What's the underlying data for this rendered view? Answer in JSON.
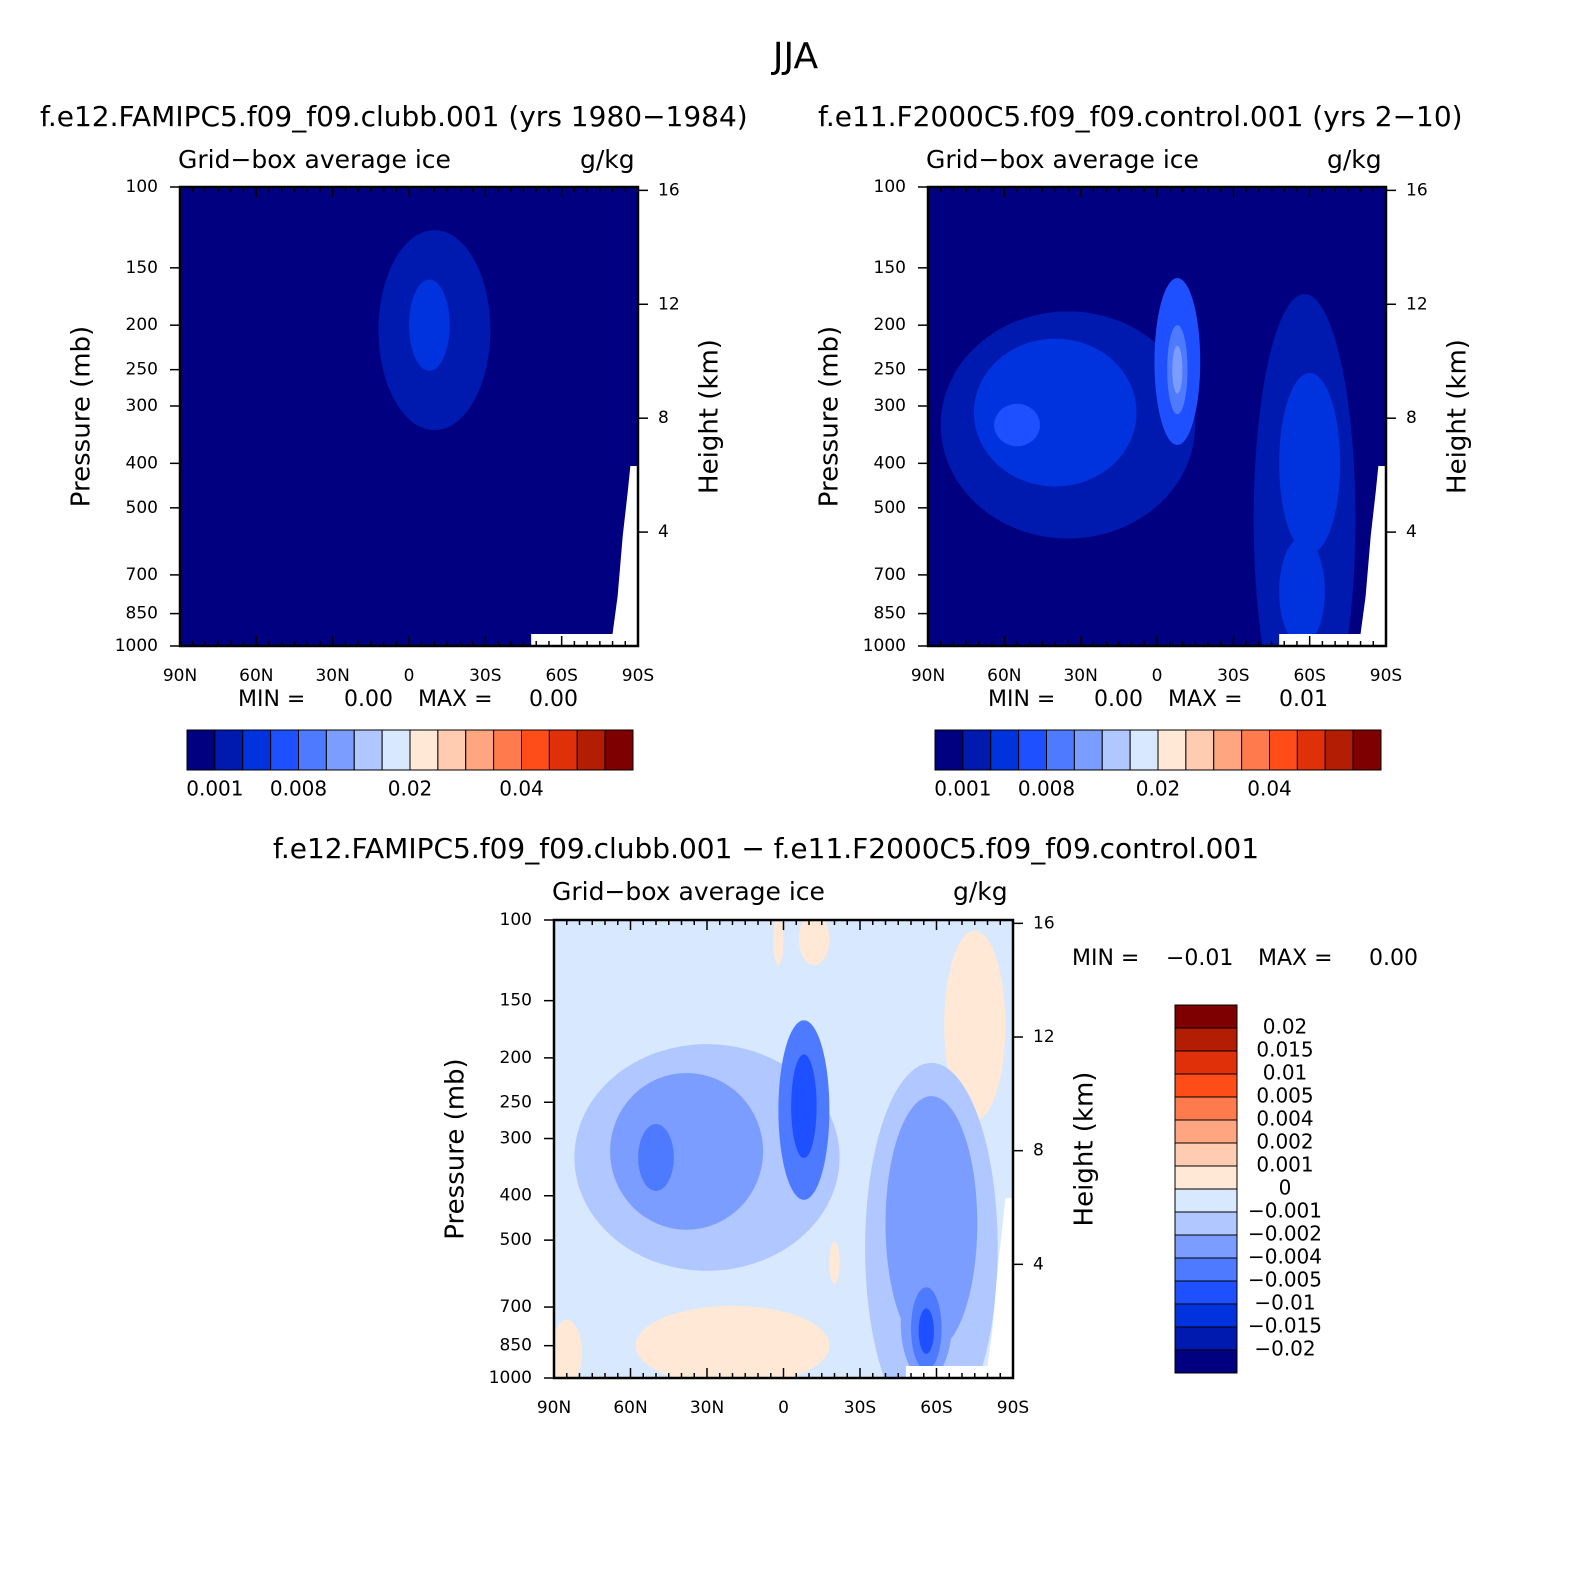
{
  "figure": {
    "title": "JJA"
  },
  "colors": {
    "cmap": [
      "#000080",
      "#0019ae",
      "#0033dd",
      "#1f50ff",
      "#4d7aff",
      "#7b9dff",
      "#b0c7ff",
      "#d7e8ff",
      "#ffe9d6",
      "#ffcbb1",
      "#ffa580",
      "#ff7a4c",
      "#ff4d1a",
      "#e0300a",
      "#b21d04",
      "#7f0000"
    ],
    "missing": "#ffffff"
  },
  "chart_data": [
    {
      "type": "heatmap",
      "title": "f.e12.FAMIPC5.f09_f09.clubb.001 (yrs 1980−1984)",
      "subtitle_left": "Grid−box average ice",
      "subtitle_right": "g/kg",
      "xlabel": "",
      "ylabel": "Pressure (mb)",
      "y2label": "Height (km)",
      "x_ticks": [
        "90N",
        "60N",
        "30N",
        "0",
        "30S",
        "60S",
        "90S"
      ],
      "x_tick_values": [
        90,
        60,
        30,
        0,
        -30,
        -60,
        -90
      ],
      "y_ticks": [
        100,
        150,
        200,
        250,
        300,
        400,
        500,
        700,
        850,
        1000
      ],
      "y2_ticks": [
        16,
        12,
        8,
        4
      ],
      "xlim": [
        90,
        -90
      ],
      "ylim": [
        1000,
        100
      ],
      "min_label": "MIN =",
      "min_value": "0.00",
      "max_label": "MAX =",
      "max_value": "0.00",
      "colorbar": {
        "orientation": "horizontal",
        "labels": [
          "0.001",
          "0.008",
          "0.02",
          "0.04"
        ],
        "label_boxes": [
          1,
          4,
          8,
          12
        ]
      },
      "background_level": 0,
      "features": [
        {
          "level": 1,
          "lat": -10,
          "p": 205,
          "dlat": 22,
          "dp": 95
        },
        {
          "level": 2,
          "lat": -8,
          "p": 200,
          "dlat": 8,
          "dp": 45
        }
      ]
    },
    {
      "type": "heatmap",
      "title": "f.e11.F2000C5.f09_f09.control.001 (yrs 2−10)",
      "subtitle_left": "Grid−box average ice",
      "subtitle_right": "g/kg",
      "xlabel": "",
      "ylabel": "Pressure (mb)",
      "y2label": "Height (km)",
      "x_ticks": [
        "90N",
        "60N",
        "30N",
        "0",
        "30S",
        "60S",
        "90S"
      ],
      "x_tick_values": [
        90,
        60,
        30,
        0,
        -30,
        -60,
        -90
      ],
      "y_ticks": [
        100,
        150,
        200,
        250,
        300,
        400,
        500,
        700,
        850,
        1000
      ],
      "y2_ticks": [
        16,
        12,
        8,
        4
      ],
      "xlim": [
        90,
        -90
      ],
      "ylim": [
        1000,
        100
      ],
      "min_label": "MIN =",
      "min_value": "0.00",
      "max_label": "MAX =",
      "max_value": "0.01",
      "colorbar": {
        "orientation": "horizontal",
        "labels": [
          "0.001",
          "0.008",
          "0.02",
          "0.04"
        ],
        "label_boxes": [
          1,
          4,
          8,
          12
        ]
      },
      "background_level": 0,
      "features": [
        {
          "level": 1,
          "lat": 35,
          "p": 330,
          "dlat": 50,
          "dp": 170
        },
        {
          "level": 1,
          "lat": -58,
          "p": 530,
          "dlat": 20,
          "dp": 430
        },
        {
          "level": 2,
          "lat": 40,
          "p": 310,
          "dlat": 32,
          "dp": 110
        },
        {
          "level": 2,
          "lat": -60,
          "p": 400,
          "dlat": 12,
          "dp": 170
        },
        {
          "level": 2,
          "lat": -57,
          "p": 760,
          "dlat": 9,
          "dp": 200
        },
        {
          "level": 3,
          "lat": -8,
          "p": 240,
          "dlat": 9,
          "dp": 95
        },
        {
          "level": 3,
          "lat": 55,
          "p": 330,
          "dlat": 9,
          "dp": 35
        },
        {
          "level": 4,
          "lat": -8,
          "p": 250,
          "dlat": 4,
          "dp": 55
        },
        {
          "level": 5,
          "lat": -8,
          "p": 250,
          "dlat": 2,
          "dp": 30
        }
      ]
    },
    {
      "type": "heatmap",
      "title": "f.e12.FAMIPC5.f09_f09.clubb.001 − f.e11.F2000C5.f09_f09.control.001",
      "subtitle_left": "Grid−box average ice",
      "subtitle_right": "g/kg",
      "xlabel": "",
      "ylabel": "Pressure (mb)",
      "y2label": "Height (km)",
      "x_ticks": [
        "90N",
        "60N",
        "30N",
        "0",
        "30S",
        "60S",
        "90S"
      ],
      "x_tick_values": [
        90,
        60,
        30,
        0,
        -30,
        -60,
        -90
      ],
      "y_ticks": [
        100,
        150,
        200,
        250,
        300,
        400,
        500,
        700,
        850,
        1000
      ],
      "y2_ticks": [
        16,
        12,
        8,
        4
      ],
      "xlim": [
        90,
        -90
      ],
      "ylim": [
        1000,
        100
      ],
      "min_label": "MIN =",
      "min_value": "−0.01",
      "max_label": "MAX =",
      "max_value": "0.00",
      "colorbar": {
        "orientation": "vertical",
        "labels": [
          "0.02",
          "0.015",
          "0.01",
          "0.005",
          "0.004",
          "0.002",
          "0.001",
          "0",
          "−0.001",
          "−0.002",
          "−0.004",
          "−0.005",
          "−0.01",
          "−0.015",
          "−0.02"
        ],
        "colors": [
          "#7f0000",
          "#b21d04",
          "#e0300a",
          "#ff4d1a",
          "#ff7a4c",
          "#ffa580",
          "#ffcbb1",
          "#ffe9d6",
          "#d7e8ff",
          "#b0c7ff",
          "#7b9dff",
          "#4d7aff",
          "#1f50ff",
          "#0033dd",
          "#0019ae",
          "#000080"
        ]
      },
      "background_level": 7,
      "features": [
        {
          "level": 8,
          "lat": 20,
          "p": 850,
          "dlat": 38,
          "dp": 180
        },
        {
          "level": 8,
          "lat": 85,
          "p": 880,
          "dlat": 6,
          "dp": 160
        },
        {
          "level": 8,
          "lat": -75,
          "p": 170,
          "dlat": 12,
          "dp": 90
        },
        {
          "level": 8,
          "lat": -20,
          "p": 560,
          "dlat": 2,
          "dp": 60
        },
        {
          "level": 8,
          "lat": -12,
          "p": 110,
          "dlat": 6,
          "dp": 20
        },
        {
          "level": 8,
          "lat": 2,
          "p": 110,
          "dlat": 2,
          "dp": 20
        },
        {
          "level": 6,
          "lat": 30,
          "p": 330,
          "dlat": 52,
          "dp": 170
        },
        {
          "level": 6,
          "lat": -58,
          "p": 520,
          "dlat": 26,
          "dp": 380
        },
        {
          "level": 5,
          "lat": 38,
          "p": 320,
          "dlat": 30,
          "dp": 120
        },
        {
          "level": 5,
          "lat": -58,
          "p": 460,
          "dlat": 18,
          "dp": 260
        },
        {
          "level": 5,
          "lat": -56,
          "p": 760,
          "dlat": 10,
          "dp": 210
        },
        {
          "level": 4,
          "lat": -8,
          "p": 260,
          "dlat": 10,
          "dp": 110
        },
        {
          "level": 4,
          "lat": 50,
          "p": 330,
          "dlat": 7,
          "dp": 55
        },
        {
          "level": 4,
          "lat": -56,
          "p": 780,
          "dlat": 6,
          "dp": 160
        },
        {
          "level": 3,
          "lat": -8,
          "p": 255,
          "dlat": 5,
          "dp": 65
        },
        {
          "level": 3,
          "lat": -56,
          "p": 790,
          "dlat": 3,
          "dp": 90
        }
      ]
    }
  ]
}
